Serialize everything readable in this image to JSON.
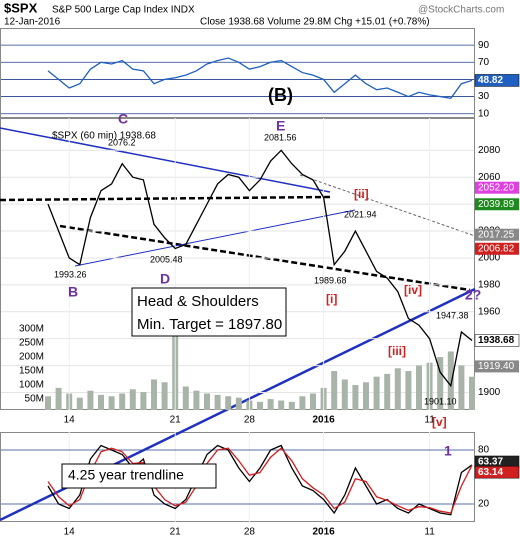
{
  "header": {
    "symbol": "$SPX",
    "name": "S&P 500 Large Cap Index INDX",
    "date": "12-Jan-2016",
    "quote": "Close 1938.68 Volume 29.8M Chg +15.01 (+0.78%)",
    "source": "@StockCharts.com"
  },
  "chart_data": [
    {
      "type": "line",
      "ylim": [
        5,
        110
      ],
      "yticks": [
        90,
        70,
        50,
        30,
        10
      ],
      "xlim": [
        0,
        40
      ],
      "series": [
        {
          "color": "#1f5fbf",
          "values": [
            60,
            50,
            40,
            45,
            62,
            70,
            68,
            72,
            62,
            60,
            45,
            50,
            52,
            55,
            60,
            68,
            72,
            75,
            70,
            62,
            65,
            70,
            72,
            65,
            58,
            55,
            50,
            35,
            45,
            55,
            45,
            38,
            40,
            35,
            30,
            35,
            32,
            30,
            28,
            45,
            48.82
          ]
        }
      ]
    },
    {
      "type": "line",
      "ylim": [
        1887,
        2104
      ],
      "yticks": [
        2080,
        2060,
        2040,
        2020,
        2000,
        1980,
        1960,
        1940,
        1920,
        1900
      ],
      "xlim": [
        0,
        40
      ],
      "xticks": [
        {
          "value": 2,
          "label": "14"
        },
        {
          "value": 12,
          "label": "21"
        },
        {
          "value": 19,
          "label": "28"
        },
        {
          "value": 26,
          "label": "2016"
        },
        {
          "value": 36,
          "label": "11"
        }
      ],
      "series": [
        {
          "name": "$SPX (60 min) 1938.68",
          "color": "#000000",
          "values": [
            2040,
            2020,
            2000,
            1995,
            2030,
            2050,
            2055,
            2070,
            2060,
            2058,
            2025,
            2015,
            2007,
            2010,
            2025,
            2040,
            2055,
            2062,
            2060,
            2050,
            2058,
            2072,
            2080,
            2070,
            2062,
            2058,
            2045,
            1995,
            2005,
            2020,
            2005,
            1990,
            1985,
            1975,
            1955,
            1950,
            1940,
            1915,
            1905,
            1945,
            1938.68
          ]
        }
      ],
      "volume": {
        "color": "#a8b4a8",
        "ylim": [
          11,
          1054
        ],
        "yticks": [
          {
            "value": 300,
            "label": "300M"
          },
          {
            "value": 250,
            "label": "250M"
          },
          {
            "value": 200,
            "label": "200M"
          },
          {
            "value": 150,
            "label": "150M"
          },
          {
            "value": 100,
            "label": "100M"
          },
          {
            "value": 50,
            "label": "50M"
          }
        ],
        "values": [
          60,
          90,
          70,
          55,
          80,
          65,
          60,
          70,
          85,
          75,
          120,
          110,
          290,
          95,
          80,
          70,
          65,
          60,
          55,
          45,
          40,
          50,
          45,
          40,
          60,
          70,
          90,
          150,
          120,
          100,
          110,
          130,
          140,
          160,
          150,
          170,
          180,
          200,
          220,
          170,
          130
        ]
      },
      "right_labels": {
        "values": [
          2052.2,
          2039.89,
          2017.25,
          2006.82,
          1919.4
        ],
        "value_labels": [
          "2052.20",
          "2039.89",
          "2017.25",
          "2006.82",
          "1919.40"
        ],
        "colors": [
          "#e040e0",
          "#1e8a1e",
          "#888888",
          "#d02020",
          "#888888"
        ]
      },
      "annotations": [
        "(B)",
        "C",
        "2076.2",
        "E",
        "2081.56",
        "[ii]",
        "2021.94",
        "1989.68",
        "[i]",
        "[iv]",
        "[iii]",
        "[v]",
        "1947.38",
        "1901.10",
        "2005.48",
        "D",
        "1993.26",
        "B",
        "2?",
        "Head & Shoulders",
        "Min. Target = 1897.80"
      ]
    },
    {
      "type": "line",
      "ylim": [
        0,
        100
      ],
      "yticks": [
        80,
        20
      ],
      "xlim": [
        0,
        40
      ],
      "series": [
        {
          "color": "#000000",
          "values": [
            40,
            20,
            15,
            30,
            70,
            85,
            80,
            75,
            60,
            70,
            30,
            20,
            15,
            25,
            50,
            75,
            85,
            80,
            60,
            45,
            60,
            80,
            85,
            60,
            40,
            35,
            25,
            10,
            30,
            60,
            40,
            20,
            25,
            15,
            10,
            20,
            15,
            10,
            8,
            55,
            63.37
          ]
        },
        {
          "color": "#d02020",
          "values": [
            45,
            28,
            18,
            25,
            55,
            78,
            82,
            78,
            65,
            66,
            40,
            25,
            18,
            22,
            40,
            65,
            80,
            82,
            68,
            52,
            55,
            72,
            82,
            68,
            48,
            38,
            30,
            15,
            22,
            48,
            45,
            28,
            24,
            18,
            13,
            17,
            16,
            12,
            10,
            40,
            63.14
          ]
        }
      ],
      "annotations": [
        "4.25 year trendline",
        "1"
      ]
    }
  ]
}
